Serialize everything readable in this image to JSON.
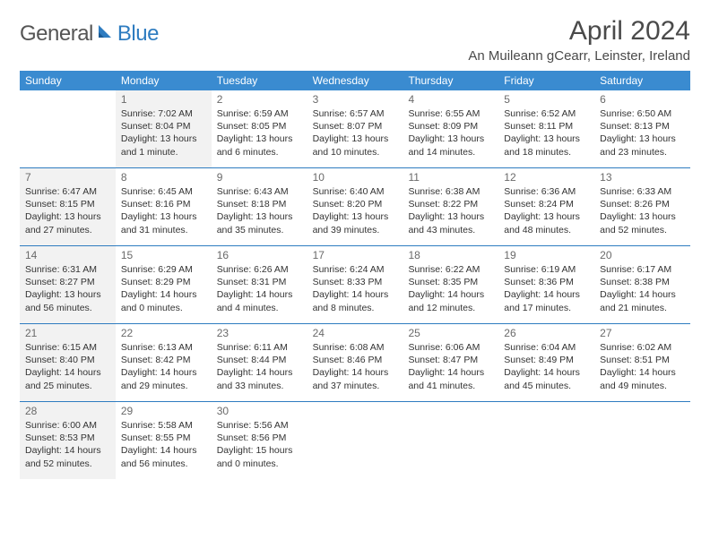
{
  "brand": {
    "part1": "General",
    "part2": "Blue"
  },
  "title": "April 2024",
  "location": "An Muileann gCearr, Leinster, Ireland",
  "colors": {
    "header_bg": "#3a8bd0",
    "rule": "#2e7cc0",
    "shaded": "#f2f2f2",
    "text": "#333333",
    "muted": "#6a6a6a"
  },
  "weekdays": [
    "Sunday",
    "Monday",
    "Tuesday",
    "Wednesday",
    "Thursday",
    "Friday",
    "Saturday"
  ],
  "weeks": [
    [
      {
        "n": "",
        "shaded": false
      },
      {
        "n": "1",
        "shaded": true,
        "sunrise": "7:02 AM",
        "sunset": "8:04 PM",
        "daylight": "13 hours and 1 minute."
      },
      {
        "n": "2",
        "shaded": false,
        "sunrise": "6:59 AM",
        "sunset": "8:05 PM",
        "daylight": "13 hours and 6 minutes."
      },
      {
        "n": "3",
        "shaded": false,
        "sunrise": "6:57 AM",
        "sunset": "8:07 PM",
        "daylight": "13 hours and 10 minutes."
      },
      {
        "n": "4",
        "shaded": false,
        "sunrise": "6:55 AM",
        "sunset": "8:09 PM",
        "daylight": "13 hours and 14 minutes."
      },
      {
        "n": "5",
        "shaded": false,
        "sunrise": "6:52 AM",
        "sunset": "8:11 PM",
        "daylight": "13 hours and 18 minutes."
      },
      {
        "n": "6",
        "shaded": false,
        "sunrise": "6:50 AM",
        "sunset": "8:13 PM",
        "daylight": "13 hours and 23 minutes."
      }
    ],
    [
      {
        "n": "7",
        "shaded": true,
        "sunrise": "6:47 AM",
        "sunset": "8:15 PM",
        "daylight": "13 hours and 27 minutes."
      },
      {
        "n": "8",
        "shaded": false,
        "sunrise": "6:45 AM",
        "sunset": "8:16 PM",
        "daylight": "13 hours and 31 minutes."
      },
      {
        "n": "9",
        "shaded": false,
        "sunrise": "6:43 AM",
        "sunset": "8:18 PM",
        "daylight": "13 hours and 35 minutes."
      },
      {
        "n": "10",
        "shaded": false,
        "sunrise": "6:40 AM",
        "sunset": "8:20 PM",
        "daylight": "13 hours and 39 minutes."
      },
      {
        "n": "11",
        "shaded": false,
        "sunrise": "6:38 AM",
        "sunset": "8:22 PM",
        "daylight": "13 hours and 43 minutes."
      },
      {
        "n": "12",
        "shaded": false,
        "sunrise": "6:36 AM",
        "sunset": "8:24 PM",
        "daylight": "13 hours and 48 minutes."
      },
      {
        "n": "13",
        "shaded": false,
        "sunrise": "6:33 AM",
        "sunset": "8:26 PM",
        "daylight": "13 hours and 52 minutes."
      }
    ],
    [
      {
        "n": "14",
        "shaded": true,
        "sunrise": "6:31 AM",
        "sunset": "8:27 PM",
        "daylight": "13 hours and 56 minutes."
      },
      {
        "n": "15",
        "shaded": false,
        "sunrise": "6:29 AM",
        "sunset": "8:29 PM",
        "daylight": "14 hours and 0 minutes."
      },
      {
        "n": "16",
        "shaded": false,
        "sunrise": "6:26 AM",
        "sunset": "8:31 PM",
        "daylight": "14 hours and 4 minutes."
      },
      {
        "n": "17",
        "shaded": false,
        "sunrise": "6:24 AM",
        "sunset": "8:33 PM",
        "daylight": "14 hours and 8 minutes."
      },
      {
        "n": "18",
        "shaded": false,
        "sunrise": "6:22 AM",
        "sunset": "8:35 PM",
        "daylight": "14 hours and 12 minutes."
      },
      {
        "n": "19",
        "shaded": false,
        "sunrise": "6:19 AM",
        "sunset": "8:36 PM",
        "daylight": "14 hours and 17 minutes."
      },
      {
        "n": "20",
        "shaded": false,
        "sunrise": "6:17 AM",
        "sunset": "8:38 PM",
        "daylight": "14 hours and 21 minutes."
      }
    ],
    [
      {
        "n": "21",
        "shaded": true,
        "sunrise": "6:15 AM",
        "sunset": "8:40 PM",
        "daylight": "14 hours and 25 minutes."
      },
      {
        "n": "22",
        "shaded": false,
        "sunrise": "6:13 AM",
        "sunset": "8:42 PM",
        "daylight": "14 hours and 29 minutes."
      },
      {
        "n": "23",
        "shaded": false,
        "sunrise": "6:11 AM",
        "sunset": "8:44 PM",
        "daylight": "14 hours and 33 minutes."
      },
      {
        "n": "24",
        "shaded": false,
        "sunrise": "6:08 AM",
        "sunset": "8:46 PM",
        "daylight": "14 hours and 37 minutes."
      },
      {
        "n": "25",
        "shaded": false,
        "sunrise": "6:06 AM",
        "sunset": "8:47 PM",
        "daylight": "14 hours and 41 minutes."
      },
      {
        "n": "26",
        "shaded": false,
        "sunrise": "6:04 AM",
        "sunset": "8:49 PM",
        "daylight": "14 hours and 45 minutes."
      },
      {
        "n": "27",
        "shaded": false,
        "sunrise": "6:02 AM",
        "sunset": "8:51 PM",
        "daylight": "14 hours and 49 minutes."
      }
    ],
    [
      {
        "n": "28",
        "shaded": true,
        "sunrise": "6:00 AM",
        "sunset": "8:53 PM",
        "daylight": "14 hours and 52 minutes."
      },
      {
        "n": "29",
        "shaded": false,
        "sunrise": "5:58 AM",
        "sunset": "8:55 PM",
        "daylight": "14 hours and 56 minutes."
      },
      {
        "n": "30",
        "shaded": false,
        "sunrise": "5:56 AM",
        "sunset": "8:56 PM",
        "daylight": "15 hours and 0 minutes."
      },
      {
        "n": "",
        "shaded": false
      },
      {
        "n": "",
        "shaded": false
      },
      {
        "n": "",
        "shaded": false
      },
      {
        "n": "",
        "shaded": false
      }
    ]
  ]
}
